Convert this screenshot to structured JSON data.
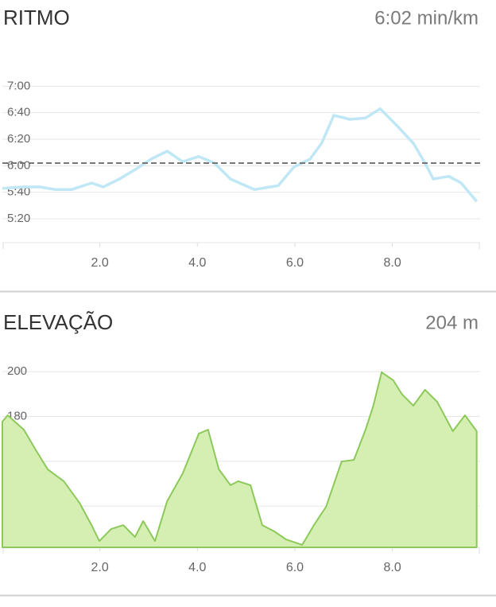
{
  "chart_data": [
    {
      "type": "line",
      "title": "RITMO",
      "summary": "6:02 min/km",
      "color": "#bfe7f5",
      "grid": true,
      "reference_line": 362,
      "reference_color": "#777777",
      "x": [
        0,
        0.44,
        0.77,
        1.09,
        1.42,
        1.83,
        2.07,
        2.4,
        2.72,
        3.05,
        3.38,
        3.7,
        4.03,
        4.35,
        4.68,
        5.17,
        5.66,
        5.98,
        6.31,
        6.55,
        6.8,
        7.13,
        7.45,
        7.75,
        8.1,
        8.43,
        8.67,
        8.84,
        9.16,
        9.41,
        9.73
      ],
      "values": [
        343,
        344,
        344,
        342,
        342,
        347,
        344,
        350,
        357,
        365,
        371,
        363,
        367,
        362,
        350,
        342,
        345,
        359,
        365,
        377,
        398,
        395,
        396,
        403,
        390,
        377,
        362,
        350,
        352,
        347,
        333
      ],
      "xlim": [
        0,
        9.8
      ],
      "ylim": [
        302,
        428
      ],
      "xticks": [
        {
          "value": 2,
          "label": "2.0"
        },
        {
          "value": 4,
          "label": "4.0"
        },
        {
          "value": 6,
          "label": "6.0"
        },
        {
          "value": 8,
          "label": "8.0"
        }
      ],
      "yticks": [
        {
          "value": 420,
          "label": "7:00"
        },
        {
          "value": 400,
          "label": "6:40"
        },
        {
          "value": 380,
          "label": "6:20"
        },
        {
          "value": 360,
          "label": "6:00"
        },
        {
          "value": 340,
          "label": "5:40"
        },
        {
          "value": 320,
          "label": "5:20"
        }
      ]
    },
    {
      "type": "area",
      "title": "ELEVAÇÃO",
      "summary": "204 m",
      "color": "#8cc95a",
      "fill": "#d5efb3",
      "grid": true,
      "x": [
        0,
        0.11,
        0.44,
        0.68,
        0.93,
        1.26,
        1.58,
        1.83,
        1.99,
        2.23,
        2.48,
        2.72,
        2.89,
        3.13,
        3.38,
        3.7,
        4.03,
        4.22,
        4.44,
        4.68,
        4.84,
        5.09,
        5.33,
        5.58,
        5.82,
        6.15,
        6.39,
        6.64,
        6.96,
        7.21,
        7.45,
        7.61,
        7.78,
        8.02,
        8.19,
        8.43,
        8.67,
        8.92,
        9.24,
        9.49,
        9.73
      ],
      "values": [
        177.7,
        180.5,
        174.1,
        165.2,
        156.4,
        151.1,
        141.5,
        131.5,
        124.4,
        129.8,
        131.5,
        126.2,
        133.3,
        124.4,
        142.2,
        154.6,
        172.3,
        174.1,
        156.4,
        149.3,
        151.1,
        149.3,
        131.5,
        128.7,
        125.1,
        122.7,
        131.5,
        139.7,
        159.9,
        160.6,
        174.1,
        184.8,
        199.7,
        196.1,
        190.1,
        184.8,
        191.9,
        186.5,
        173.4,
        180.5,
        173.4
      ],
      "xlim": [
        0,
        9.8
      ],
      "ylim": [
        121.6,
        205
      ],
      "xticks": [
        {
          "value": 2,
          "label": "2.0"
        },
        {
          "value": 4,
          "label": "4.0"
        },
        {
          "value": 6,
          "label": "6.0"
        },
        {
          "value": 8,
          "label": "8.0"
        }
      ],
      "yticks": [
        200,
        180,
        160,
        140
      ]
    }
  ]
}
